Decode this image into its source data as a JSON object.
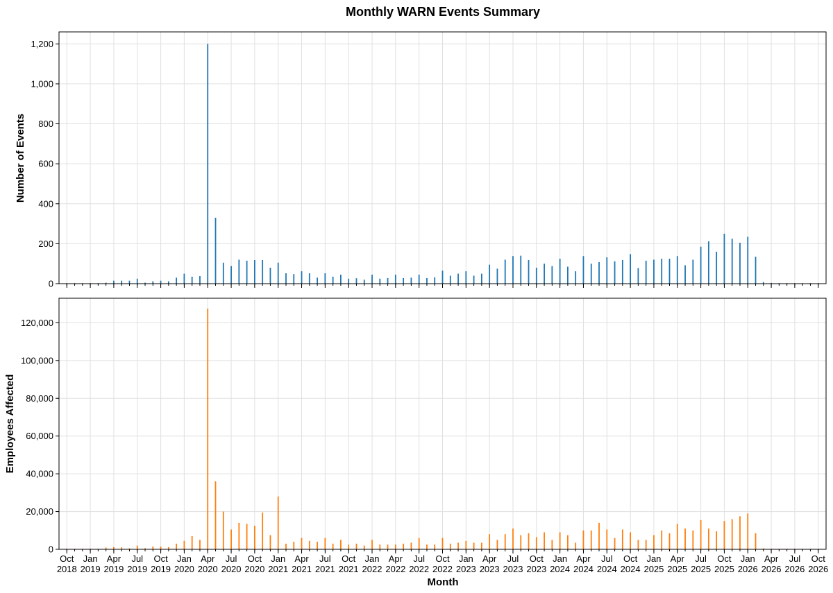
{
  "figure": {
    "title": "Monthly WARN Events Summary",
    "x_label": "Month"
  },
  "colors": {
    "events": "#1f77b4",
    "employees": "#ff7f0e",
    "grid": "#e0e0e0",
    "frame": "#000000"
  },
  "chart_data": [
    {
      "type": "bar",
      "ylabel": "Number of Events",
      "ylim": [
        0,
        1260
      ],
      "y_ticks": [
        0,
        200,
        400,
        600,
        800,
        1000,
        1200
      ],
      "y_tick_labels": [
        "0",
        "200",
        "400",
        "600",
        "800",
        "1,000",
        "1,200"
      ],
      "grid": true,
      "x_start": "2018-09",
      "x_end": "2026-11",
      "x_ticks": [
        "2018-10",
        "2019-01",
        "2019-04",
        "2019-07",
        "2019-10",
        "2020-01",
        "2020-04",
        "2020-07",
        "2020-10",
        "2021-01",
        "2021-04",
        "2021-07",
        "2021-10",
        "2022-01",
        "2022-04",
        "2022-07",
        "2022-10",
        "2023-01",
        "2023-04",
        "2023-07",
        "2023-10",
        "2024-01",
        "2024-04",
        "2024-07",
        "2024-10",
        "2025-01",
        "2025-04",
        "2025-07",
        "2025-10",
        "2026-01",
        "2026-04",
        "2026-07",
        "2026-10"
      ],
      "x_tick_labels": [
        "Oct\n2018",
        "Jan\n2019",
        "Apr\n2019",
        "Jul\n2019",
        "Oct\n2019",
        "Jan\n2020",
        "Apr\n2020",
        "Jul\n2020",
        "Oct\n2020",
        "Jan\n2021",
        "Apr\n2021",
        "Jul\n2021",
        "Oct\n2021",
        "Jan\n2022",
        "Apr\n2022",
        "Jul\n2022",
        "Oct\n2022",
        "Jan\n2023",
        "Apr\n2023",
        "Jul\n2023",
        "Oct\n2023",
        "Jan\n2024",
        "Apr\n2024",
        "Jul\n2024",
        "Oct\n2024",
        "Jan\n2025",
        "Apr\n2025",
        "Jul\n2025",
        "Oct\n2025",
        "Jan\n2026",
        "Apr\n2026",
        "Jul\n2026",
        "Oct\n2026"
      ],
      "x": [
        "2018-10",
        "2018-11",
        "2018-12",
        "2019-01",
        "2019-02",
        "2019-03",
        "2019-04",
        "2019-05",
        "2019-06",
        "2019-07",
        "2019-08",
        "2019-09",
        "2019-10",
        "2019-11",
        "2019-12",
        "2020-01",
        "2020-02",
        "2020-03",
        "2020-04",
        "2020-05",
        "2020-06",
        "2020-07",
        "2020-08",
        "2020-09",
        "2020-10",
        "2020-11",
        "2020-12",
        "2021-01",
        "2021-02",
        "2021-03",
        "2021-04",
        "2021-05",
        "2021-06",
        "2021-07",
        "2021-08",
        "2021-09",
        "2021-10",
        "2021-11",
        "2021-12",
        "2022-01",
        "2022-02",
        "2022-03",
        "2022-04",
        "2022-05",
        "2022-06",
        "2022-07",
        "2022-08",
        "2022-09",
        "2022-10",
        "2022-11",
        "2022-12",
        "2023-01",
        "2023-02",
        "2023-03",
        "2023-04",
        "2023-05",
        "2023-06",
        "2023-07",
        "2023-08",
        "2023-09",
        "2023-10",
        "2023-11",
        "2023-12",
        "2024-01",
        "2024-02",
        "2024-03",
        "2024-04",
        "2024-05",
        "2024-06",
        "2024-07",
        "2024-08",
        "2024-09",
        "2024-10",
        "2024-11",
        "2024-12",
        "2025-01",
        "2025-02",
        "2025-03",
        "2025-04",
        "2025-05",
        "2025-06",
        "2025-07",
        "2025-08",
        "2025-09",
        "2025-10",
        "2025-11",
        "2025-12",
        "2026-01",
        "2026-02",
        "2026-03",
        "2026-04",
        "2026-05",
        "2026-06",
        "2026-07",
        "2026-08",
        "2026-09",
        "2026-10"
      ],
      "values": [
        1,
        1,
        2,
        2,
        3,
        5,
        15,
        15,
        15,
        25,
        5,
        12,
        15,
        12,
        30,
        50,
        35,
        38,
        1200,
        330,
        105,
        88,
        120,
        115,
        118,
        118,
        80,
        105,
        52,
        48,
        62,
        52,
        30,
        52,
        35,
        45,
        25,
        27,
        20,
        45,
        25,
        28,
        45,
        28,
        30,
        45,
        28,
        32,
        65,
        40,
        50,
        62,
        40,
        50,
        95,
        75,
        120,
        138,
        140,
        118,
        80,
        100,
        88,
        125,
        85,
        62,
        138,
        100,
        108,
        132,
        112,
        118,
        148,
        78,
        115,
        120,
        125,
        125,
        138,
        92,
        120,
        185,
        212,
        160,
        250,
        225,
        205,
        235,
        135,
        8,
        4,
        3,
        2,
        2,
        2,
        2,
        1
      ]
    },
    {
      "type": "bar",
      "ylabel": "Employees Affected",
      "ylim": [
        0,
        133000
      ],
      "y_ticks": [
        0,
        20000,
        40000,
        60000,
        80000,
        100000,
        120000
      ],
      "y_tick_labels": [
        "0",
        "20,000",
        "40,000",
        "60,000",
        "80,000",
        "100,000",
        "120,000"
      ],
      "grid": true,
      "x_start": "2018-09",
      "x_end": "2026-11",
      "x": [
        "2018-10",
        "2018-11",
        "2018-12",
        "2019-01",
        "2019-02",
        "2019-03",
        "2019-04",
        "2019-05",
        "2019-06",
        "2019-07",
        "2019-08",
        "2019-09",
        "2019-10",
        "2019-11",
        "2019-12",
        "2020-01",
        "2020-02",
        "2020-03",
        "2020-04",
        "2020-05",
        "2020-06",
        "2020-07",
        "2020-08",
        "2020-09",
        "2020-10",
        "2020-11",
        "2020-12",
        "2021-01",
        "2021-02",
        "2021-03",
        "2021-04",
        "2021-05",
        "2021-06",
        "2021-07",
        "2021-08",
        "2021-09",
        "2021-10",
        "2021-11",
        "2021-12",
        "2022-01",
        "2022-02",
        "2022-03",
        "2022-04",
        "2022-05",
        "2022-06",
        "2022-07",
        "2022-08",
        "2022-09",
        "2022-10",
        "2022-11",
        "2022-12",
        "2023-01",
        "2023-02",
        "2023-03",
        "2023-04",
        "2023-05",
        "2023-06",
        "2023-07",
        "2023-08",
        "2023-09",
        "2023-10",
        "2023-11",
        "2023-12",
        "2024-01",
        "2024-02",
        "2024-03",
        "2024-04",
        "2024-05",
        "2024-06",
        "2024-07",
        "2024-08",
        "2024-09",
        "2024-10",
        "2024-11",
        "2024-12",
        "2025-01",
        "2025-02",
        "2025-03",
        "2025-04",
        "2025-05",
        "2025-06",
        "2025-07",
        "2025-08",
        "2025-09",
        "2025-10",
        "2025-11",
        "2025-12",
        "2026-01",
        "2026-02",
        "2026-03",
        "2026-04",
        "2026-05",
        "2026-06",
        "2026-07",
        "2026-08",
        "2026-09",
        "2026-10"
      ],
      "values": [
        100,
        100,
        200,
        300,
        300,
        900,
        1200,
        1000,
        500,
        2000,
        600,
        1500,
        1500,
        1200,
        3000,
        4500,
        7000,
        5000,
        127500,
        36000,
        20000,
        10500,
        14000,
        13500,
        12500,
        19500,
        7500,
        28000,
        3000,
        4000,
        6000,
        4500,
        4000,
        6000,
        3000,
        5000,
        2500,
        3000,
        2000,
        5000,
        2500,
        2500,
        2500,
        3000,
        3500,
        6000,
        2500,
        2500,
        6000,
        3000,
        3500,
        4500,
        3500,
        3500,
        8000,
        5000,
        8000,
        11000,
        7500,
        8500,
        6500,
        9000,
        5000,
        9000,
        7500,
        3500,
        10000,
        10000,
        14000,
        10500,
        6000,
        10500,
        9000,
        5000,
        5000,
        7500,
        10000,
        8500,
        13500,
        11000,
        10000,
        15500,
        11000,
        9500,
        15000,
        16000,
        17500,
        19000,
        8500,
        500,
        300,
        200,
        200,
        200,
        200,
        100,
        100
      ]
    }
  ]
}
